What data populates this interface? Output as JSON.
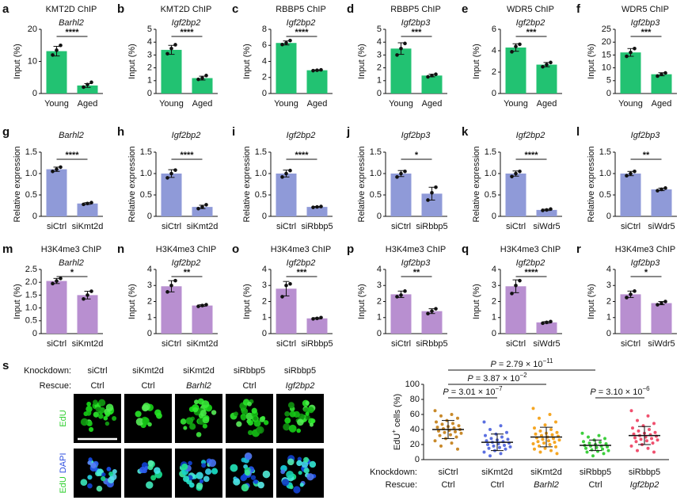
{
  "chart_data": [
    {
      "type": "bar",
      "panel": "a",
      "title": "KMT2D ChIP",
      "subtitle": "Barhl2",
      "ylabel": "Input (%)",
      "categories": [
        "Young",
        "Aged"
      ],
      "values": [
        13.2,
        2.5
      ],
      "errors": [
        1.5,
        0.6
      ],
      "points": [
        [
          12,
          13.5,
          15
        ],
        [
          2,
          2.8,
          3.5
        ]
      ],
      "sig": "****",
      "ylim": [
        0,
        20
      ],
      "yticks": [
        0,
        10,
        20
      ],
      "color": "#22c272"
    },
    {
      "type": "bar",
      "panel": "b",
      "title": "KMT2D ChIP",
      "subtitle": "Igf2bp2",
      "ylabel": "Input (%)",
      "categories": [
        "Young",
        "Aged"
      ],
      "values": [
        3.4,
        1.2
      ],
      "errors": [
        0.35,
        0.15
      ],
      "points": [
        [
          3.1,
          3.5,
          3.8
        ],
        [
          1.1,
          1.2,
          1.4
        ]
      ],
      "sig": "****",
      "ylim": [
        0,
        5
      ],
      "yticks": [
        0,
        1,
        2,
        3,
        4,
        5
      ],
      "color": "#22c272"
    },
    {
      "type": "bar",
      "panel": "c",
      "title": "RBBP5 ChIP",
      "subtitle": "Igf2bp2",
      "ylabel": "Input (%)",
      "categories": [
        "Young",
        "Aged"
      ],
      "values": [
        6.3,
        2.9
      ],
      "errors": [
        0.25,
        0.05
      ],
      "points": [
        [
          6.1,
          6.3,
          6.6
        ],
        [
          2.85,
          2.9,
          2.95
        ]
      ],
      "sig": "****",
      "ylim": [
        0,
        8
      ],
      "yticks": [
        0,
        2,
        4,
        6,
        8
      ],
      "color": "#22c272"
    },
    {
      "type": "bar",
      "panel": "d",
      "title": "RBBP5 ChIP",
      "subtitle": "Igf2bp3",
      "ylabel": "Input (%)",
      "categories": [
        "Young",
        "Aged"
      ],
      "values": [
        3.5,
        1.4
      ],
      "errors": [
        0.45,
        0.1
      ],
      "points": [
        [
          3.0,
          3.5,
          3.9
        ],
        [
          1.3,
          1.4,
          1.5
        ]
      ],
      "sig": "***",
      "ylim": [
        0,
        5
      ],
      "yticks": [
        0,
        1,
        2,
        3,
        4,
        5
      ],
      "color": "#22c272"
    },
    {
      "type": "bar",
      "panel": "e",
      "title": "WDR5 ChIP",
      "subtitle": "Igf2bp2",
      "ylabel": "Input (%)",
      "categories": [
        "Young",
        "Aged"
      ],
      "values": [
        4.3,
        2.7
      ],
      "errors": [
        0.35,
        0.2
      ],
      "points": [
        [
          3.9,
          4.4,
          4.6
        ],
        [
          2.5,
          2.7,
          2.9
        ]
      ],
      "sig": "***",
      "ylim": [
        0,
        6
      ],
      "yticks": [
        0,
        2,
        4,
        6
      ],
      "color": "#22c272"
    },
    {
      "type": "bar",
      "panel": "f",
      "title": "WDR5 ChIP",
      "subtitle": "Igf2bp3",
      "ylabel": "Input (%)",
      "categories": [
        "Young",
        "Aged"
      ],
      "values": [
        16,
        7.5
      ],
      "errors": [
        1.5,
        0.6
      ],
      "points": [
        [
          14.5,
          16,
          17.5
        ],
        [
          6.8,
          7.5,
          8
        ]
      ],
      "sig": "***",
      "ylim": [
        0,
        25
      ],
      "yticks": [
        0,
        5,
        10,
        15,
        20,
        25
      ],
      "color": "#22c272"
    },
    {
      "type": "bar",
      "panel": "g",
      "subtitle": "Barhl2",
      "ylabel": "Relative expression",
      "categories": [
        "siCtrl",
        "siKmt2d"
      ],
      "values": [
        1.1,
        0.3
      ],
      "errors": [
        0.05,
        0.02
      ],
      "points": [
        [
          1.05,
          1.1,
          1.15
        ],
        [
          0.28,
          0.3,
          0.32
        ]
      ],
      "sig": "****",
      "ylim": [
        0,
        1.5
      ],
      "yticks": [
        0,
        0.5,
        {
          "value": 1,
          "label": "1.0"
        },
        1.5
      ],
      "color": "#8f9ad8"
    },
    {
      "type": "bar",
      "panel": "h",
      "subtitle": "Igf2bp2",
      "ylabel": "Relative expression",
      "categories": [
        "siCtrl",
        "siKmt2d"
      ],
      "values": [
        1.0,
        0.22
      ],
      "errors": [
        0.09,
        0.04
      ],
      "points": [
        [
          0.9,
          1.0,
          1.08
        ],
        [
          0.18,
          0.22,
          0.27
        ]
      ],
      "sig": "****",
      "ylim": [
        0,
        1.5
      ],
      "yticks": [
        0,
        0.5,
        {
          "value": 1,
          "label": "1.0"
        },
        1.5
      ],
      "color": "#8f9ad8"
    },
    {
      "type": "bar",
      "panel": "i",
      "subtitle": "Igf2bp2",
      "ylabel": "Relative expression",
      "categories": [
        "siCtrl",
        "siRbbp5"
      ],
      "values": [
        1.0,
        0.22
      ],
      "errors": [
        0.08,
        0.01
      ],
      "points": [
        [
          0.92,
          1.0,
          1.07
        ],
        [
          0.21,
          0.22,
          0.23
        ]
      ],
      "sig": "****",
      "ylim": [
        0,
        1.5
      ],
      "yticks": [
        0,
        0.5,
        {
          "value": 1,
          "label": "1.0"
        },
        1.5
      ],
      "color": "#8f9ad8"
    },
    {
      "type": "bar",
      "panel": "j",
      "subtitle": "Igf2bp3",
      "ylabel": "Relative expression",
      "categories": [
        "siCtrl",
        "siRbbp5"
      ],
      "values": [
        1.0,
        0.53
      ],
      "errors": [
        0.07,
        0.15
      ],
      "points": [
        [
          0.92,
          1.0,
          1.05
        ],
        [
          0.38,
          0.55,
          0.68
        ]
      ],
      "sig": "*",
      "ylim": [
        0,
        1.5
      ],
      "yticks": [
        0,
        0.5,
        {
          "value": 1,
          "label": "1.0"
        },
        1.5
      ],
      "color": "#8f9ad8"
    },
    {
      "type": "bar",
      "panel": "k",
      "subtitle": "Igf2bp2",
      "ylabel": "Relative expression",
      "categories": [
        "siCtrl",
        "siWdr5"
      ],
      "values": [
        1.0,
        0.15
      ],
      "errors": [
        0.06,
        0.015
      ],
      "points": [
        [
          0.93,
          1.0,
          1.05
        ],
        [
          0.14,
          0.15,
          0.17
        ]
      ],
      "sig": "****",
      "ylim": [
        0,
        1.5
      ],
      "yticks": [
        0,
        0.5,
        {
          "value": 1,
          "label": "1.0"
        },
        1.5
      ],
      "color": "#8f9ad8"
    },
    {
      "type": "bar",
      "panel": "l",
      "subtitle": "Igf2bp3",
      "ylabel": "Relative expression",
      "categories": [
        "siCtrl",
        "siWdr5"
      ],
      "values": [
        1.0,
        0.63
      ],
      "errors": [
        0.05,
        0.03
      ],
      "points": [
        [
          0.95,
          1.0,
          1.05
        ],
        [
          0.6,
          0.63,
          0.66
        ]
      ],
      "sig": "**",
      "ylim": [
        0,
        1.5
      ],
      "yticks": [
        0,
        0.5,
        {
          "value": 1,
          "label": "1.0"
        },
        1.5
      ],
      "color": "#8f9ad8"
    },
    {
      "type": "bar",
      "panel": "m",
      "title": "H3K4me3 ChIP",
      "subtitle": "Barhl2",
      "ylabel": "Input (%)",
      "categories": [
        "siCtrl",
        "siKmt2d"
      ],
      "values": [
        2.05,
        1.5
      ],
      "errors": [
        0.1,
        0.15
      ],
      "points": [
        [
          1.95,
          2.05,
          2.15
        ],
        [
          1.35,
          1.5,
          1.65
        ]
      ],
      "sig": "*",
      "ylim": [
        0,
        2.5
      ],
      "yticks": [
        0,
        0.5,
        {
          "value": 1,
          "label": "1.0"
        },
        1.5,
        {
          "value": 2,
          "label": "2.0"
        },
        2.5
      ],
      "color": "#b88fd0"
    },
    {
      "type": "bar",
      "panel": "n",
      "title": "H3K4me3 ChIP",
      "subtitle": "Igf2bp2",
      "ylabel": "Input (%)",
      "categories": [
        "siCtrl",
        "siKmt2d"
      ],
      "values": [
        2.95,
        1.75
      ],
      "errors": [
        0.35,
        0.05
      ],
      "points": [
        [
          2.6,
          3.0,
          3.3
        ],
        [
          1.7,
          1.75,
          1.8
        ]
      ],
      "sig": "**",
      "ylim": [
        0,
        4
      ],
      "yticks": [
        0,
        1,
        2,
        3,
        4
      ],
      "color": "#b88fd0"
    },
    {
      "type": "bar",
      "panel": "o",
      "title": "H3K4me3 ChIP",
      "subtitle": "Igf2bp2",
      "ylabel": "Input (%)",
      "categories": [
        "siCtrl",
        "siRbbp5"
      ],
      "values": [
        2.8,
        0.95
      ],
      "errors": [
        0.45,
        0.04
      ],
      "points": [
        [
          2.3,
          3.0,
          3.1
        ],
        [
          0.92,
          0.95,
          1.0
        ]
      ],
      "sig": "***",
      "ylim": [
        0,
        4
      ],
      "yticks": [
        0,
        1,
        2,
        3,
        4
      ],
      "color": "#b88fd0"
    },
    {
      "type": "bar",
      "panel": "p",
      "title": "H3K4me3 ChIP",
      "subtitle": "Igf2bp3",
      "ylabel": "Input (%)",
      "categories": [
        "siCtrl",
        "siRbbp5"
      ],
      "values": [
        2.45,
        1.4
      ],
      "errors": [
        0.2,
        0.15
      ],
      "points": [
        [
          2.3,
          2.4,
          2.65
        ],
        [
          1.25,
          1.4,
          1.55
        ]
      ],
      "sig": "**",
      "ylim": [
        0,
        4
      ],
      "yticks": [
        0,
        1,
        2,
        3,
        4
      ],
      "color": "#b88fd0"
    },
    {
      "type": "bar",
      "panel": "q",
      "title": "H3K4me3 ChIP",
      "subtitle": "Igf2bp2",
      "ylabel": "Input (%)",
      "categories": [
        "siCtrl",
        "siWdr5"
      ],
      "values": [
        2.95,
        0.7
      ],
      "errors": [
        0.4,
        0.05
      ],
      "points": [
        [
          2.5,
          3.0,
          3.3
        ],
        [
          0.65,
          0.7,
          0.75
        ]
      ],
      "sig": "****",
      "ylim": [
        0,
        4
      ],
      "yticks": [
        0,
        1,
        2,
        3,
        4
      ],
      "color": "#b88fd0"
    },
    {
      "type": "bar",
      "panel": "r",
      "title": "H3K4me3 ChIP",
      "subtitle": "Igf2bp3",
      "ylabel": "Input (%)",
      "categories": [
        "siCtrl",
        "siWdr5"
      ],
      "values": [
        2.45,
        1.9
      ],
      "errors": [
        0.2,
        0.1
      ],
      "points": [
        [
          2.25,
          2.45,
          2.65
        ],
        [
          1.8,
          1.9,
          2.0
        ]
      ],
      "sig": "*",
      "ylim": [
        0,
        4
      ],
      "yticks": [
        0,
        1,
        2,
        3,
        4
      ],
      "color": "#b88fd0"
    },
    {
      "type": "strip",
      "ylabel": "EdU",
      "ylabel_sup": "+",
      "ylabel_rest": " cells (%)",
      "row_knockdown": "Knockdown:",
      "row_rescue": "Rescue:",
      "ylim": [
        0,
        100
      ],
      "yticks": [
        0,
        20,
        40,
        60,
        80,
        100
      ],
      "series": [
        {
          "knockdown": "siCtrl",
          "rescue": "Ctrl",
          "rescue_italic": false,
          "color": "#c8892a",
          "mean": 40,
          "sd": 12,
          "values": [
            65,
            60,
            58,
            55,
            52,
            50,
            48,
            47,
            45,
            44,
            43,
            42,
            41,
            40,
            39,
            38,
            37,
            36,
            35,
            33,
            32,
            30,
            28,
            25,
            22,
            18,
            14
          ]
        },
        {
          "knockdown": "siKmt2d",
          "rescue": "Ctrl",
          "rescue_italic": false,
          "color": "#5b6fe0",
          "mean": 23,
          "sd": 11,
          "values": [
            50,
            45,
            40,
            36,
            34,
            32,
            30,
            28,
            27,
            26,
            25,
            24,
            23,
            22,
            21,
            20,
            19,
            18,
            17,
            16,
            15,
            14,
            12,
            10,
            8,
            5
          ]
        },
        {
          "knockdown": "siKmt2d",
          "rescue": "Barhl2",
          "rescue_italic": true,
          "color": "#f5a623",
          "mean": 30,
          "sd": 13,
          "values": [
            68,
            60,
            55,
            50,
            46,
            42,
            40,
            38,
            36,
            35,
            34,
            33,
            32,
            31,
            30,
            29,
            28,
            27,
            26,
            25,
            24,
            23,
            22,
            21,
            20,
            18,
            17,
            15,
            14,
            12,
            10,
            8
          ]
        },
        {
          "knockdown": "siRbbp5",
          "rescue": "Ctrl",
          "rescue_italic": false,
          "color": "#3ccf3c",
          "mean": 19,
          "sd": 7,
          "values": [
            35,
            32,
            30,
            28,
            26,
            24,
            23,
            22,
            21,
            20,
            19,
            18,
            18,
            17,
            16,
            15,
            14,
            13,
            12,
            11,
            10,
            8,
            5
          ]
        },
        {
          "knockdown": "siRbbp5",
          "rescue": "Igf2bp2",
          "rescue_italic": true,
          "color": "#f0506e",
          "mean": 32,
          "sd": 12,
          "values": [
            65,
            58,
            52,
            48,
            45,
            42,
            40,
            38,
            36,
            35,
            34,
            33,
            32,
            31,
            30,
            29,
            28,
            27,
            26,
            25,
            24,
            22,
            20,
            18,
            15,
            12,
            10
          ]
        }
      ],
      "comparisons": [
        {
          "from": 0,
          "to": 1,
          "p_label": "P",
          "p_text": " = 3.01 × 10",
          "p_exp": "−7"
        },
        {
          "from": 0,
          "to": 2,
          "p_label": "P",
          "p_text": " = 3.87 × 10",
          "p_exp": "−2"
        },
        {
          "from": 0,
          "to": 3,
          "p_label": "P",
          "p_text": " = 2.79 × 10",
          "p_exp": "−11"
        },
        {
          "from": 3,
          "to": 4,
          "p_label": "P",
          "p_text": " = 3.10 × 10",
          "p_exp": "−6"
        }
      ]
    }
  ],
  "images": {
    "panel": "s",
    "row_knockdown": "Knockdown:",
    "row_rescue": "Rescue:",
    "columns": [
      {
        "knockdown": "siCtrl",
        "rescue": "Ctrl",
        "rescue_italic": false
      },
      {
        "knockdown": "siKmt2d",
        "rescue": "Ctrl",
        "rescue_italic": false
      },
      {
        "knockdown": "siKmt2d",
        "rescue": "Barhl2",
        "rescue_italic": true
      },
      {
        "knockdown": "siRbbp5",
        "rescue": "Ctrl",
        "rescue_italic": false
      },
      {
        "knockdown": "siRbbp5",
        "rescue": "Igf2bp2",
        "rescue_italic": true
      }
    ],
    "channels": [
      [
        {
          "text": "EdU",
          "color": "#2fcf2f"
        }
      ],
      [
        {
          "text": "EdU",
          "color": "#2fcf2f"
        },
        {
          "text": "DAPI",
          "color": "#3050e0"
        }
      ]
    ]
  }
}
